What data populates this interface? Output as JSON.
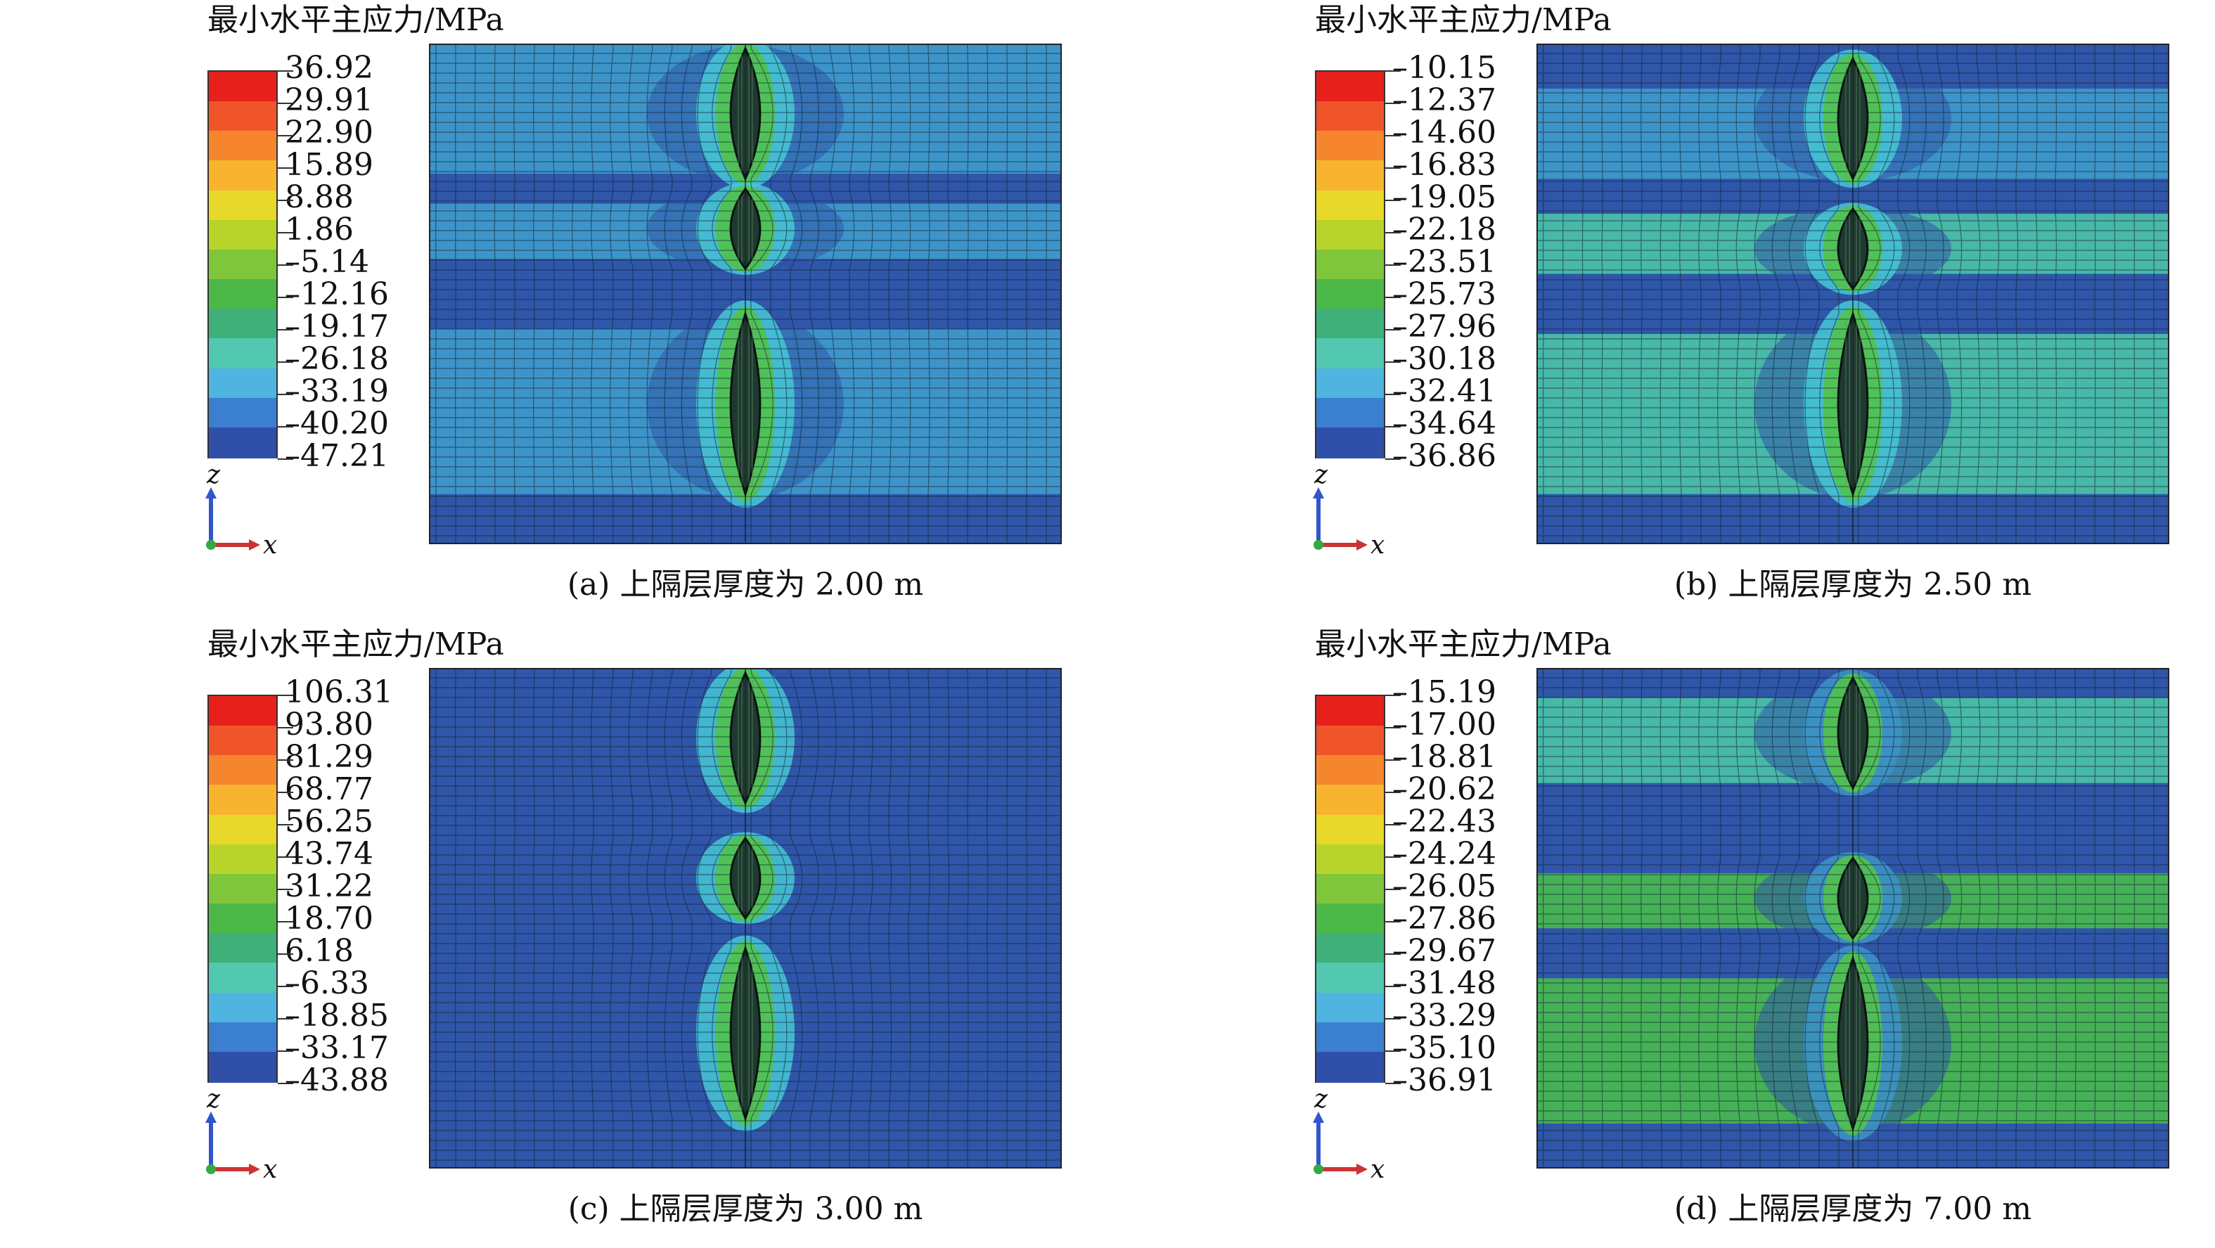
{
  "panels": [
    {
      "legend_title": "最小水平主应力/MPa",
      "legend_values": [
        "36.92",
        "29.91",
        "22.90",
        "15.89",
        "8.88",
        "1.86",
        "–5.14",
        "–12.16",
        "–19.17",
        "–26.18",
        "–33.19",
        "–40.20",
        "–47.21"
      ],
      "caption": "(a) 上隔层厚度为 2.00 m",
      "axis_z": "z",
      "axis_x": "x",
      "layers": [
        {
          "tone": "cyan",
          "from": 0.0,
          "to": 0.26
        },
        {
          "tone": "blue",
          "from": 0.26,
          "to": 0.32
        },
        {
          "tone": "cyan",
          "from": 0.32,
          "to": 0.43
        },
        {
          "tone": "blue",
          "from": 0.43,
          "to": 0.57
        },
        {
          "tone": "cyan",
          "from": 0.57,
          "to": 0.9
        },
        {
          "tone": "blue",
          "from": 0.9,
          "to": 1.0
        }
      ],
      "fractures": [
        {
          "center": 0.14,
          "half": 0.13
        },
        {
          "center": 0.37,
          "half": 0.08
        },
        {
          "center": 0.72,
          "half": 0.18
        }
      ]
    },
    {
      "legend_title": "最小水平主应力/MPa",
      "legend_values": [
        "–10.15",
        "–12.37",
        "–14.60",
        "–16.83",
        "–19.05",
        "–22.18",
        "–23.51",
        "–25.73",
        "–27.96",
        "–30.18",
        "–32.41",
        "–34.64",
        "–36.86"
      ],
      "caption": "(b) 上隔层厚度为 2.50 m",
      "axis_z": "z",
      "axis_x": "x",
      "layers": [
        {
          "tone": "blue",
          "from": 0.0,
          "to": 0.09
        },
        {
          "tone": "cyan",
          "from": 0.09,
          "to": 0.27
        },
        {
          "tone": "blue",
          "from": 0.27,
          "to": 0.34
        },
        {
          "tone": "teal",
          "from": 0.34,
          "to": 0.46
        },
        {
          "tone": "blue",
          "from": 0.46,
          "to": 0.58
        },
        {
          "tone": "teal",
          "from": 0.58,
          "to": 0.9
        },
        {
          "tone": "blue",
          "from": 0.9,
          "to": 1.0
        }
      ],
      "fractures": [
        {
          "center": 0.15,
          "half": 0.12
        },
        {
          "center": 0.41,
          "half": 0.08
        },
        {
          "center": 0.72,
          "half": 0.18
        }
      ]
    },
    {
      "legend_title": "最小水平主应力/MPa",
      "legend_values": [
        "106.31",
        "93.80",
        "81.29",
        "68.77",
        "56.25",
        "43.74",
        "31.22",
        "18.70",
        "6.18",
        "–6.33",
        "–18.85",
        "–33.17",
        "–43.88"
      ],
      "caption": "(c) 上隔层厚度为 3.00 m",
      "axis_z": "z",
      "axis_x": "x",
      "layers": [
        {
          "tone": "blue",
          "from": 0.0,
          "to": 1.0
        }
      ],
      "fractures": [
        {
          "center": 0.14,
          "half": 0.13
        },
        {
          "center": 0.42,
          "half": 0.08
        },
        {
          "center": 0.73,
          "half": 0.17
        }
      ]
    },
    {
      "legend_title": "最小水平主应力/MPa",
      "legend_values": [
        "–15.19",
        "–17.00",
        "–18.81",
        "–20.62",
        "–22.43",
        "–24.24",
        "–26.05",
        "–27.86",
        "–29.67",
        "–31.48",
        "–33.29",
        "–35.10",
        "–36.91"
      ],
      "caption": "(d) 上隔层厚度为 7.00 m",
      "axis_z": "z",
      "axis_x": "x",
      "layers": [
        {
          "tone": "blue",
          "from": 0.0,
          "to": 0.06
        },
        {
          "tone": "teal",
          "from": 0.06,
          "to": 0.23
        },
        {
          "tone": "blue",
          "from": 0.23,
          "to": 0.41
        },
        {
          "tone": "green",
          "from": 0.41,
          "to": 0.52
        },
        {
          "tone": "blue",
          "from": 0.52,
          "to": 0.62
        },
        {
          "tone": "green",
          "from": 0.62,
          "to": 0.91
        },
        {
          "tone": "blue",
          "from": 0.91,
          "to": 1.0
        }
      ],
      "fractures": [
        {
          "center": 0.13,
          "half": 0.11
        },
        {
          "center": 0.46,
          "half": 0.08
        },
        {
          "center": 0.75,
          "half": 0.17
        }
      ]
    }
  ],
  "colors": {
    "legend_bands": [
      "#e8201c",
      "#f0552a",
      "#f5862e",
      "#f8b42e",
      "#e8d82a",
      "#b8d42a",
      "#7fc63a",
      "#4cb848",
      "#3fb07a",
      "#52c8b0",
      "#4fb4e0",
      "#3a7fd0",
      "#2f4fa8"
    ],
    "blue": "#2f56a8",
    "cyan": "#3d94c8",
    "teal": "#48b8a8",
    "green": "#45b056",
    "halo": "#47c8d6",
    "halo_green": "#52c24a",
    "mesh": "#102030"
  }
}
